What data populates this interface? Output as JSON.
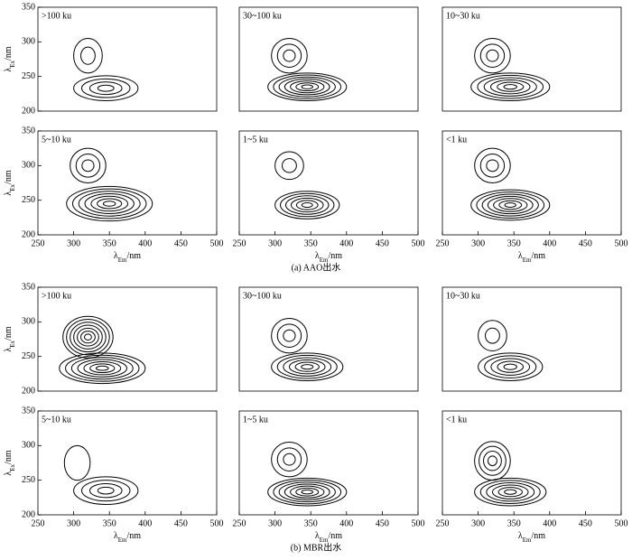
{
  "chart_data": [
    {
      "type": "contour",
      "title": ">100 ku",
      "xlim": [
        250,
        500
      ],
      "ylim": [
        200,
        350
      ],
      "yticks": [
        200,
        250,
        300,
        350
      ],
      "ylabel": {
        "main": "λ",
        "sub": "Ex",
        "unit": "/nm"
      },
      "peaks": [
        {
          "x": 320,
          "y": 280,
          "rx": 20,
          "ry": 25,
          "levels": 2
        },
        {
          "x": 345,
          "y": 233,
          "rx": 45,
          "ry": 18,
          "levels": 4
        }
      ]
    },
    {
      "type": "contour",
      "title": "30~100 ku",
      "xlim": [
        250,
        500
      ],
      "ylim": [
        200,
        350
      ],
      "peaks": [
        {
          "x": 320,
          "y": 280,
          "rx": 25,
          "ry": 25,
          "levels": 3
        },
        {
          "x": 345,
          "y": 235,
          "rx": 55,
          "ry": 20,
          "levels": 7
        }
      ]
    },
    {
      "type": "contour",
      "title": "10~30 ku",
      "xlim": [
        250,
        500
      ],
      "ylim": [
        200,
        350
      ],
      "peaks": [
        {
          "x": 320,
          "y": 280,
          "rx": 25,
          "ry": 25,
          "levels": 3
        },
        {
          "x": 345,
          "y": 235,
          "rx": 55,
          "ry": 20,
          "levels": 6
        }
      ]
    },
    {
      "type": "contour",
      "title": "5~10 ku",
      "xlim": [
        250,
        500
      ],
      "ylim": [
        200,
        350
      ],
      "xticks": [
        250,
        300,
        350,
        400,
        450,
        500
      ],
      "yticks": [
        200,
        250,
        300,
        350
      ],
      "xlabel": {
        "main": "λ",
        "sub": "Em",
        "unit": "/nm"
      },
      "ylabel": {
        "main": "λ",
        "sub": "Ex",
        "unit": "/nm"
      },
      "peaks": [
        {
          "x": 320,
          "y": 300,
          "rx": 25,
          "ry": 25,
          "levels": 3
        },
        {
          "x": 350,
          "y": 245,
          "rx": 60,
          "ry": 25,
          "levels": 7
        }
      ]
    },
    {
      "type": "contour",
      "title": "1~5 ku",
      "xlim": [
        250,
        500
      ],
      "ylim": [
        200,
        350
      ],
      "xticks": [
        250,
        300,
        350,
        400,
        450,
        500
      ],
      "xlabel": {
        "main": "λ",
        "sub": "Em",
        "unit": "/nm"
      },
      "peaks": [
        {
          "x": 320,
          "y": 300,
          "rx": 20,
          "ry": 20,
          "levels": 2
        },
        {
          "x": 345,
          "y": 243,
          "rx": 45,
          "ry": 20,
          "levels": 6
        }
      ]
    },
    {
      "type": "contour",
      "title": "<1 ku",
      "xlim": [
        250,
        500
      ],
      "ylim": [
        200,
        350
      ],
      "xticks": [
        250,
        300,
        350,
        400,
        450,
        500
      ],
      "xlabel": {
        "main": "λ",
        "sub": "Em",
        "unit": "/nm"
      },
      "peaks": [
        {
          "x": 320,
          "y": 300,
          "rx": 25,
          "ry": 25,
          "levels": 3
        },
        {
          "x": 345,
          "y": 243,
          "rx": 55,
          "ry": 22,
          "levels": 7
        }
      ]
    },
    {
      "type": "contour",
      "title": ">100 ku",
      "xlim": [
        250,
        500
      ],
      "ylim": [
        200,
        350
      ],
      "yticks": [
        200,
        250,
        300,
        350
      ],
      "ylabel": {
        "main": "λ",
        "sub": "Ex",
        "unit": "/nm"
      },
      "peaks": [
        {
          "x": 320,
          "y": 278,
          "rx": 35,
          "ry": 30,
          "levels": 7
        },
        {
          "x": 340,
          "y": 233,
          "rx": 60,
          "ry": 22,
          "levels": 7
        }
      ]
    },
    {
      "type": "contour",
      "title": "30~100 ku",
      "xlim": [
        250,
        500
      ],
      "ylim": [
        200,
        350
      ],
      "peaks": [
        {
          "x": 320,
          "y": 280,
          "rx": 25,
          "ry": 25,
          "levels": 3
        },
        {
          "x": 345,
          "y": 235,
          "rx": 50,
          "ry": 20,
          "levels": 6
        }
      ]
    },
    {
      "type": "contour",
      "title": "10~30 ku",
      "xlim": [
        250,
        500
      ],
      "ylim": [
        200,
        350
      ],
      "peaks": [
        {
          "x": 320,
          "y": 280,
          "rx": 20,
          "ry": 22,
          "levels": 2
        },
        {
          "x": 345,
          "y": 235,
          "rx": 45,
          "ry": 20,
          "levels": 5
        }
      ]
    },
    {
      "type": "contour",
      "title": "5~10 ku",
      "xlim": [
        250,
        500
      ],
      "ylim": [
        200,
        350
      ],
      "xticks": [
        250,
        300,
        350,
        400,
        450,
        500
      ],
      "yticks": [
        200,
        250,
        300,
        350
      ],
      "xlabel": {
        "main": "λ",
        "sub": "Em",
        "unit": "/nm"
      },
      "ylabel": {
        "main": "λ",
        "sub": "Ex",
        "unit": "/nm"
      },
      "peaks": [
        {
          "x": 305,
          "y": 275,
          "rx": 18,
          "ry": 25,
          "levels": 1
        },
        {
          "x": 345,
          "y": 235,
          "rx": 45,
          "ry": 20,
          "levels": 4
        }
      ]
    },
    {
      "type": "contour",
      "title": "1~5 ku",
      "xlim": [
        250,
        500
      ],
      "ylim": [
        200,
        350
      ],
      "xticks": [
        250,
        300,
        350,
        400,
        450,
        500
      ],
      "xlabel": {
        "main": "λ",
        "sub": "Em",
        "unit": "/nm"
      },
      "peaks": [
        {
          "x": 320,
          "y": 280,
          "rx": 25,
          "ry": 25,
          "levels": 3
        },
        {
          "x": 345,
          "y": 233,
          "rx": 55,
          "ry": 20,
          "levels": 7
        }
      ]
    },
    {
      "type": "contour",
      "title": "<1 ku",
      "xlim": [
        250,
        500
      ],
      "ylim": [
        200,
        350
      ],
      "xticks": [
        250,
        300,
        350,
        400,
        450,
        500
      ],
      "xlabel": {
        "main": "λ",
        "sub": "Em",
        "unit": "/nm"
      },
      "peaks": [
        {
          "x": 320,
          "y": 278,
          "rx": 25,
          "ry": 28,
          "levels": 4
        },
        {
          "x": 345,
          "y": 233,
          "rx": 50,
          "ry": 20,
          "levels": 6
        }
      ]
    }
  ],
  "captions": [
    "(a) AAO出水",
    "(b) MBR出水"
  ]
}
